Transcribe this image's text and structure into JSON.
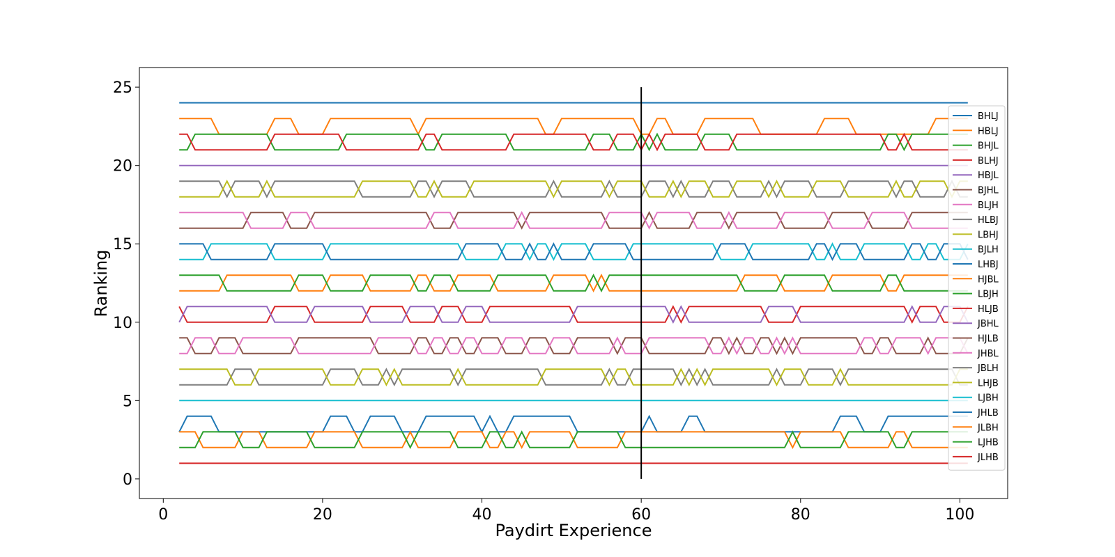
{
  "chart_data": {
    "type": "line",
    "title": "",
    "xlabel": "Paydirt Experience",
    "ylabel": "Ranking",
    "xlim": [
      -3,
      106
    ],
    "ylim": [
      -1.25,
      26.25
    ],
    "xticks": [
      0,
      20,
      40,
      60,
      80,
      100
    ],
    "yticks": [
      0,
      5,
      10,
      15,
      20,
      25
    ],
    "grid": false,
    "legend_position": "right",
    "x_start": 2,
    "x_end": 101,
    "vertical_marker": {
      "x": 60,
      "y_range": [
        0,
        25
      ],
      "color": "#000000"
    },
    "series": [
      {
        "name": "BHLJ",
        "color": "#1f77b4",
        "base": 24,
        "switch_with": null
      },
      {
        "name": "HBLJ",
        "color": "#ff7f0e",
        "base": 23,
        "switch_with": 22
      },
      {
        "name": "BHJL",
        "color": "#2ca02c",
        "base": 22,
        "switch_with": 23
      },
      {
        "name": "BLHJ",
        "color": "#d62728",
        "base": 21,
        "switch_with": 22
      },
      {
        "name": "HBJL",
        "color": "#9467bd",
        "base": 20,
        "switch_with": null
      },
      {
        "name": "BJHL",
        "color": "#8c564b",
        "base": 17,
        "switch_with": 16
      },
      {
        "name": "BLJH",
        "color": "#e377c2",
        "base": 16,
        "switch_with": 17
      },
      {
        "name": "HLBJ",
        "color": "#7f7f7f",
        "base": 19,
        "switch_with": 18
      },
      {
        "name": "LBHJ",
        "color": "#bcbd22",
        "base": 18,
        "switch_with": 19
      },
      {
        "name": "BJLH",
        "color": "#17becf",
        "base": 14,
        "switch_with": 15
      },
      {
        "name": "LHBJ",
        "color": "#1f77b4",
        "base": 15,
        "switch_with": 14
      },
      {
        "name": "HJBL",
        "color": "#ff7f0e",
        "base": 13,
        "switch_with": 12
      },
      {
        "name": "LBJH",
        "color": "#2ca02c",
        "base": 12,
        "switch_with": 13
      },
      {
        "name": "HLJB",
        "color": "#d62728",
        "base": 11,
        "switch_with": 10
      },
      {
        "name": "JBHL",
        "color": "#9467bd",
        "base": 10,
        "switch_with": 11
      },
      {
        "name": "HJLB",
        "color": "#8c564b",
        "base": 9,
        "switch_with": 8
      },
      {
        "name": "JHBL",
        "color": "#e377c2",
        "base": 8,
        "switch_with": 9
      },
      {
        "name": "JBLH",
        "color": "#7f7f7f",
        "base": 7,
        "switch_with": 6
      },
      {
        "name": "LHJB",
        "color": "#bcbd22",
        "base": 6,
        "switch_with": 7
      },
      {
        "name": "LJBH",
        "color": "#17becf",
        "base": 5,
        "switch_with": null
      },
      {
        "name": "JHLB",
        "color": "#1f77b4",
        "base": 4,
        "switch_with": 3
      },
      {
        "name": "JLBH",
        "color": "#ff7f0e",
        "base": 3,
        "switch_with": 4
      },
      {
        "name": "LJHB",
        "color": "#2ca02c",
        "base": 2,
        "switch_with": 3
      },
      {
        "name": "JLHB",
        "color": "#d62728",
        "base": 1,
        "switch_with": null
      }
    ]
  }
}
